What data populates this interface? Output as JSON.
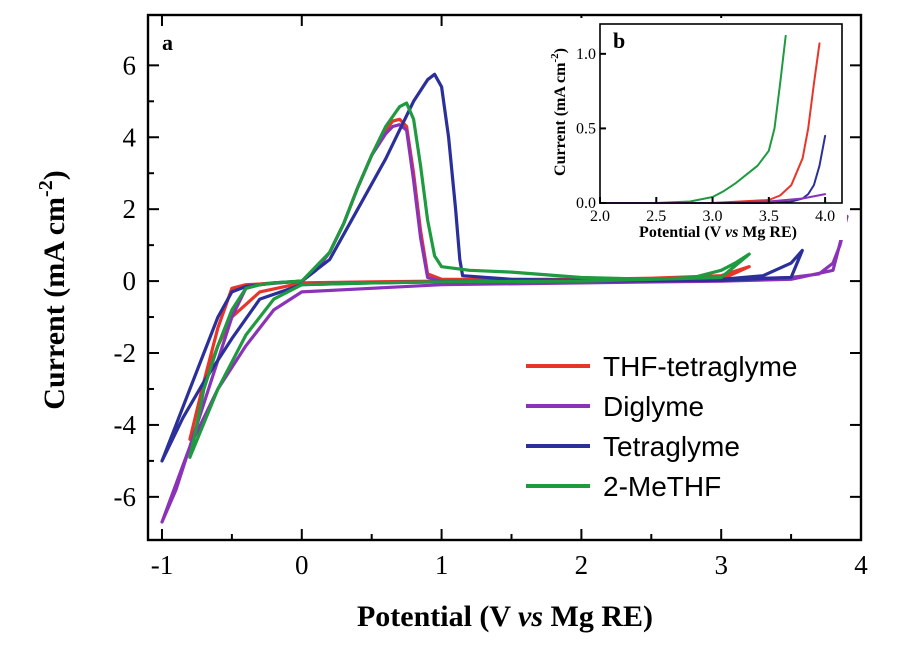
{
  "chart_data": [
    {
      "type": "line",
      "panel_label": "a",
      "xlabel_parts": [
        "Potential (V ",
        "vs",
        " Mg RE)"
      ],
      "ylabel_parts": [
        "Current (mA cm",
        "-2",
        ")"
      ],
      "xlim": [
        -1.1,
        4.0
      ],
      "ylim": [
        -7.2,
        7.4
      ],
      "xticks": [
        -1,
        0,
        1,
        2,
        3,
        4
      ],
      "yticks": [
        -6,
        -4,
        -2,
        0,
        2,
        4,
        6
      ],
      "legend_position": "bottom-right",
      "series": [
        {
          "name": "THF-tetraglyme",
          "color": "#e8352a",
          "x": [
            -0.8,
            -0.75,
            -0.7,
            -0.6,
            -0.5,
            -0.4,
            -0.3,
            -0.2,
            -0.1,
            0.0,
            0.1,
            0.2,
            0.3,
            0.4,
            0.5,
            0.6,
            0.65,
            0.7,
            0.75,
            0.8,
            0.85,
            0.9,
            1.0,
            1.5,
            2.0,
            2.5,
            3.0,
            3.2,
            3.0,
            2.0,
            1.0,
            0.5,
            0.0,
            -0.3,
            -0.5,
            -0.6,
            -0.7,
            -0.8
          ],
          "y": [
            -4.4,
            -3.6,
            -2.8,
            -1.3,
            -0.2,
            -0.1,
            -0.08,
            -0.05,
            -0.03,
            0.0,
            0.3,
            0.8,
            1.6,
            2.6,
            3.5,
            4.2,
            4.45,
            4.5,
            4.3,
            3.0,
            1.4,
            0.2,
            0.05,
            0.05,
            0.05,
            0.08,
            0.15,
            0.4,
            0.05,
            0.02,
            0.0,
            -0.02,
            -0.05,
            -0.3,
            -1.0,
            -1.8,
            -2.8,
            -4.4
          ]
        },
        {
          "name": "Diglyme",
          "color": "#8b33b8",
          "x": [
            -1.0,
            -0.9,
            -0.8,
            -0.7,
            -0.6,
            -0.5,
            -0.4,
            -0.3,
            -0.2,
            -0.1,
            0.0,
            0.1,
            0.2,
            0.3,
            0.4,
            0.5,
            0.6,
            0.65,
            0.7,
            0.75,
            0.8,
            0.85,
            0.9,
            1.0,
            1.5,
            2.0,
            2.5,
            3.0,
            3.5,
            3.7,
            3.8,
            3.85,
            3.9,
            3.8,
            3.5,
            3.0,
            2.0,
            1.0,
            0.5,
            0.0,
            -0.2,
            -0.4,
            -0.6,
            -0.8,
            -1.0
          ],
          "y": [
            -6.7,
            -5.8,
            -4.6,
            -3.4,
            -2.2,
            -1.0,
            -0.2,
            -0.1,
            -0.06,
            -0.03,
            0.0,
            0.3,
            0.8,
            1.6,
            2.6,
            3.5,
            4.1,
            4.3,
            4.35,
            4.2,
            2.8,
            1.2,
            0.1,
            0.0,
            0.0,
            0.0,
            0.02,
            0.05,
            0.1,
            0.2,
            0.5,
            1.0,
            1.8,
            0.3,
            0.05,
            0.0,
            -0.05,
            -0.1,
            -0.2,
            -0.3,
            -0.8,
            -1.8,
            -3.0,
            -4.6,
            -6.7
          ]
        },
        {
          "name": "Tetraglyme",
          "color": "#2b2f9a",
          "x": [
            -1.0,
            -0.9,
            -0.8,
            -0.7,
            -0.6,
            -0.5,
            -0.4,
            -0.2,
            0.0,
            0.2,
            0.4,
            0.6,
            0.7,
            0.8,
            0.9,
            0.95,
            1.0,
            1.05,
            1.1,
            1.13,
            1.15,
            1.5,
            2.0,
            2.5,
            3.0,
            3.3,
            3.5,
            3.58,
            3.5,
            3.0,
            2.0,
            1.0,
            0.5,
            0.0,
            -0.3,
            -0.5,
            -0.7,
            -0.85,
            -1.0
          ],
          "y": [
            -5.0,
            -4.0,
            -3.0,
            -2.0,
            -1.0,
            -0.3,
            -0.15,
            -0.05,
            0.0,
            0.6,
            2.0,
            3.4,
            4.2,
            5.0,
            5.6,
            5.75,
            5.4,
            4.0,
            2.0,
            0.6,
            0.15,
            0.05,
            0.02,
            0.03,
            0.05,
            0.15,
            0.5,
            0.85,
            0.1,
            0.02,
            0.0,
            -0.02,
            -0.05,
            -0.1,
            -0.5,
            -1.6,
            -2.8,
            -3.8,
            -5.0
          ]
        },
        {
          "name": "2-MeTHF",
          "color": "#1e9a3f",
          "x": [
            -0.8,
            -0.75,
            -0.7,
            -0.6,
            -0.5,
            -0.4,
            -0.3,
            -0.2,
            0.0,
            0.2,
            0.3,
            0.4,
            0.5,
            0.6,
            0.7,
            0.75,
            0.8,
            0.85,
            0.9,
            0.95,
            1.0,
            1.2,
            1.5,
            2.0,
            2.5,
            2.8,
            3.0,
            3.1,
            3.2,
            3.0,
            2.0,
            1.0,
            0.5,
            0.0,
            -0.2,
            -0.4,
            -0.6,
            -0.8
          ],
          "y": [
            -4.9,
            -4.0,
            -3.0,
            -1.8,
            -0.8,
            -0.2,
            -0.1,
            -0.05,
            0.0,
            0.8,
            1.6,
            2.6,
            3.5,
            4.3,
            4.85,
            4.95,
            4.5,
            3.2,
            1.7,
            0.7,
            0.4,
            0.3,
            0.25,
            0.1,
            0.05,
            0.1,
            0.3,
            0.5,
            0.75,
            0.1,
            0.0,
            -0.02,
            -0.05,
            -0.1,
            -0.5,
            -1.5,
            -3.0,
            -4.9
          ]
        }
      ]
    },
    {
      "type": "line",
      "panel_label": "b",
      "xlabel_parts": [
        "Potential (V ",
        "vs",
        " Mg RE)"
      ],
      "ylabel_parts": [
        "Current (mA cm",
        "-2",
        ")"
      ],
      "xlim": [
        2.0,
        4.15
      ],
      "ylim": [
        0.0,
        1.2
      ],
      "xticks": [
        2.0,
        2.5,
        3.0,
        3.5,
        4.0
      ],
      "xtick_labels": [
        "2.0",
        "2.5",
        "3.0",
        "3.5",
        "4.0"
      ],
      "yticks": [
        0.0,
        0.5,
        1.0
      ],
      "ytick_labels": [
        "0.0",
        "0.5",
        "1.0"
      ],
      "series": [
        {
          "color": "#1e9a3f",
          "x": [
            2.0,
            2.5,
            2.8,
            3.0,
            3.1,
            3.2,
            3.3,
            3.4,
            3.5,
            3.55,
            3.6,
            3.65
          ],
          "y": [
            0.0,
            0.0,
            0.01,
            0.04,
            0.08,
            0.13,
            0.19,
            0.25,
            0.35,
            0.5,
            0.8,
            1.12
          ]
        },
        {
          "color": "#e8352a",
          "x": [
            2.0,
            3.0,
            3.5,
            3.6,
            3.7,
            3.8,
            3.85,
            3.9,
            3.95
          ],
          "y": [
            0.0,
            0.0,
            0.02,
            0.05,
            0.12,
            0.3,
            0.5,
            0.8,
            1.07
          ]
        },
        {
          "color": "#2b2f9a",
          "x": [
            2.0,
            3.0,
            3.5,
            3.7,
            3.8,
            3.85,
            3.9,
            3.95,
            4.0
          ],
          "y": [
            0.0,
            0.0,
            0.0,
            0.01,
            0.03,
            0.06,
            0.12,
            0.25,
            0.45
          ]
        },
        {
          "color": "#8b33b8",
          "x": [
            2.0,
            3.0,
            3.5,
            3.8,
            4.0
          ],
          "y": [
            0.0,
            0.0,
            0.01,
            0.03,
            0.06
          ]
        }
      ]
    }
  ]
}
